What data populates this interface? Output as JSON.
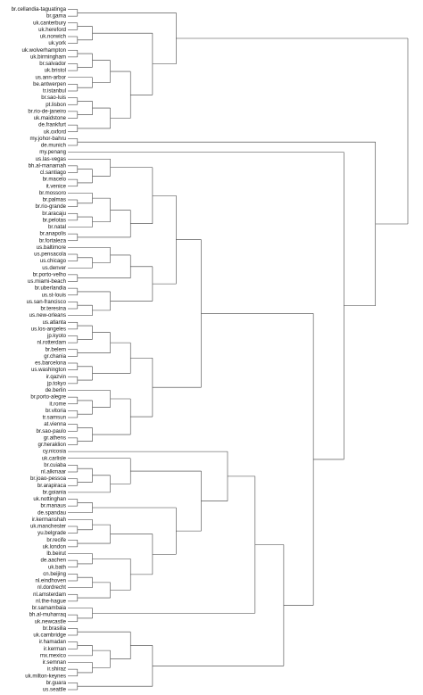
{
  "tree": [
    "+",
    [
      "+",
      [
        "+",
        "br.cellandia-taguatinga",
        "br.gama"
      ],
      [
        "+",
        [
          "+",
          [
            "+",
            "uk.canterbury",
            "uk.hereford"
          ],
          [
            "+",
            "uk.norwich",
            "uk.york"
          ]
        ],
        [
          "+",
          [
            "+",
            [
              "+",
              [
                "+",
                "uk.wolverhampton",
                "uk.birmingham"
              ],
              [
                "+",
                "br.salvador",
                "uk.bristol"
              ]
            ],
            [
              "+",
              "us.ann-arbor",
              [
                "+",
                "be.antwerpen",
                "tr.istanbul"
              ]
            ]
          ],
          [
            "+",
            [
              "+",
              [
                "+",
                "br.sao-luis",
                "pt.lisbon"
              ],
              [
                "+",
                "br.rio-de-janeiro",
                "uk.maidstone"
              ]
            ],
            [
              "+",
              "de.frankfurt",
              "uk.oxford"
            ]
          ]
        ]
      ]
    ],
    [
      "+",
      [
        "+",
        "my.johor-bahru",
        "de.munich"
      ],
      [
        "+",
        "my.penang",
        [
          "+",
          [
            "+",
            [
              "+",
              [
                "+",
                [
                  "+",
                  "us.las-vegas",
                  [
                    "+",
                    [
                      "+",
                      "bh.al-manamah",
                      "cl.santiago"
                    ],
                    [
                      "+",
                      "br.macelo",
                      "it.venice"
                    ]
                  ]
                ],
                [
                  "+",
                  [
                    "+",
                    [
                      "+",
                      "br.mossoro",
                      [
                        "+",
                        "br.palmas",
                        "br.rio-grande"
                      ]
                    ],
                    [
                      "+",
                      [
                        "+",
                        "br.aracaju",
                        "br.pelotas"
                      ],
                      "br.natal"
                    ]
                  ],
                  [
                    "+",
                    "br.anapolis",
                    "br.fortaleza"
                  ]
                ]
              ],
              [
                "+",
                [
                  "+",
                  [
                    "+",
                    "us.baltimore",
                    [
                      "+",
                      [
                        "+",
                        "us.pensacola",
                        "us.chicago"
                      ],
                      "us.denver"
                    ]
                  ],
                  [
                    "+",
                    "br.porto-velho",
                    "us.miami-beach"
                  ]
                ],
                [
                  "+",
                  [
                    "+",
                    "br.uberlandia",
                    "us.st-louis"
                  ],
                  [
                    "+",
                    [
                      "+",
                      "us.san-francisco",
                      "br.teresina"
                    ],
                    "us.new-orleans"
                  ]
                ]
              ]
            ],
            [
              "+",
              [
                "+",
                [
                  "+",
                  [
                    "+",
                    [
                      "+",
                      "us.atlanta",
                      "us.los-angeles"
                    ],
                    [
                      "+",
                      "jp.kyoto",
                      "nl.rotterdam"
                    ]
                  ],
                  [
                    "+",
                    "br.belem",
                    "gr.chania"
                  ]
                ],
                [
                  "+",
                  [
                    "+",
                    "es.barcelona",
                    "us.washington"
                  ],
                  [
                    "+",
                    "ir.qazvin",
                    "jp.tokyo"
                  ]
                ]
              ],
              [
                "+",
                [
                  "+",
                  "de.berlin",
                  [
                    "+",
                    [
                      "+",
                      "br.porto-alegre",
                      "it.rome"
                    ],
                    [
                      "+",
                      "br.vitoria",
                      "tr.samsun"
                    ]
                  ]
                ],
                [
                  "+",
                  [
                    "+",
                    "at.vienna",
                    "br.sao-paulo"
                  ],
                  [
                    "+",
                    "gr.athens",
                    "gr.heraklion"
                  ]
                ]
              ]
            ]
          ],
          [
            "+",
            [
              "+",
              [
                "+",
                "cy.nicosia",
                [
                  "+",
                  [
                    "+",
                    "uk.carlisle",
                    [
                      "+",
                      [
                        "+",
                        [
                          "+",
                          "br.cuiaba",
                          "nl.alkmaar"
                        ],
                        [
                          "+",
                          "br.joao-pessoa",
                          "br.arapiraca"
                        ]
                      ],
                      "br.goiania"
                    ]
                  ],
                  [
                    "+",
                    [
                      "+",
                      [
                        "+",
                        "uk.nottinghan",
                        "br.manaus"
                      ],
                      "de.spandau"
                    ],
                    [
                      "+",
                      [
                        "+",
                        [
                          "+",
                          "ir.kermanshah",
                          [
                            "+",
                            "uk.manchester",
                            "yu.belgrade"
                          ]
                        ],
                        [
                          "+",
                          "br.recife",
                          "uk.london"
                        ]
                      ],
                      [
                        "+",
                        [
                          "+",
                          "lb.beirut",
                          [
                            "+",
                            "de.aachen",
                            "uk.bath"
                          ]
                        ],
                        [
                          "+",
                          [
                            "+",
                            [
                              "+",
                              "cn.beijing",
                              "nl.eindhoven"
                            ],
                            "nl.dordrecht"
                          ],
                          [
                            "+",
                            "nl.amsterdam",
                            "nl.the-hague"
                          ]
                        ]
                      ]
                    ]
                  ]
                ]
              ],
              [
                "+",
                "br.samambaia",
                [
                  "+",
                  "bh.al-muharraq",
                  "uk.newcastle"
                ]
              ]
            ],
            [
              "+",
              [
                "+",
                [
                  "+",
                  "br.brasilia",
                  "uk.cambridge"
                ],
                [
                  "+",
                  [
                    "+",
                    [
                      "+",
                      "ir.hamadan",
                      "ir.kerman"
                    ],
                    "mx.mexico"
                  ],
                  [
                    "+",
                    "ir.semnan",
                    [
                      "+",
                      "ir.shiraz",
                      "uk.milton-keynes"
                    ]
                  ]
                ]
              ],
              [
                "+",
                "br.guara",
                "us.seattle"
              ]
            ]
          ]
        ]
      ]
    ]
  ]
}
